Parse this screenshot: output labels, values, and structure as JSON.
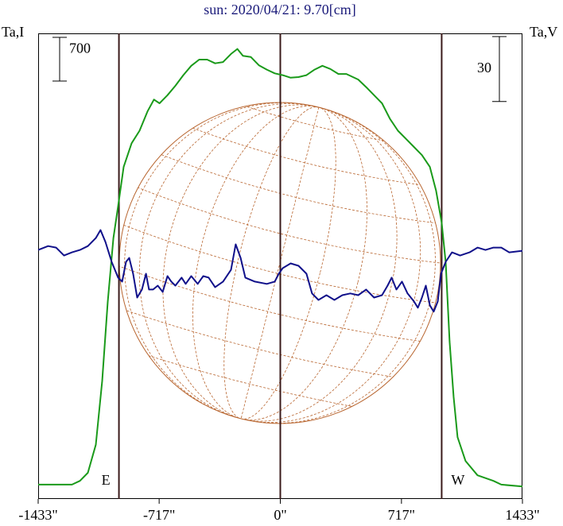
{
  "chart_data": {
    "type": "line",
    "title": "sun: 2020/04/21: 9.70[cm]",
    "y_label": "Ta,I",
    "y2_label": "Ta,V",
    "xlim": [
      -1433,
      1433
    ],
    "xticks": [
      {
        "value": -1433,
        "label": "-1433\""
      },
      {
        "value": -717,
        "label": "-717\""
      },
      {
        "value": 0,
        "label": "0\""
      },
      {
        "value": 717,
        "label": "717\""
      },
      {
        "value": 1433,
        "label": "1433\""
      }
    ],
    "ylim": [
      -230,
      7230
    ],
    "y2lim": [
      -115,
      100
    ],
    "scale_bars": [
      {
        "value": 700
      },
      {
        "value": 30,
        "axis": "y2"
      }
    ],
    "markers": [
      {
        "label": "E",
        "x": -955
      },
      {
        "label": "W",
        "x": 955
      }
    ],
    "series": [
      {
        "name": "I",
        "color": "#1a9a1a",
        "x": [
          -1433,
          -1233,
          -1186,
          -1139,
          -1092,
          -1054,
          -1021,
          -988,
          -960,
          -927,
          -880,
          -833,
          -786,
          -748,
          -715,
          -668,
          -621,
          -574,
          -527,
          -480,
          -433,
          -386,
          -339,
          -292,
          -254,
          -221,
          -174,
          -127,
          -80,
          -33,
          14,
          61,
          108,
          155,
          203,
          249,
          296,
          344,
          391,
          461,
          508,
          555,
          602,
          649,
          696,
          744,
          791,
          838,
          885,
          922,
          955,
          979,
          1002,
          1026,
          1049,
          1096,
          1167,
          1261,
          1308,
          1433
        ],
        "values": [
          0,
          0,
          60,
          190,
          640,
          1660,
          2930,
          3950,
          4460,
          5090,
          5470,
          5670,
          5980,
          6170,
          6110,
          6240,
          6390,
          6560,
          6710,
          6810,
          6810,
          6750,
          6770,
          6900,
          6980,
          6870,
          6850,
          6720,
          6650,
          6590,
          6560,
          6520,
          6530,
          6560,
          6650,
          6710,
          6660,
          6580,
          6580,
          6490,
          6370,
          6240,
          6110,
          5860,
          5670,
          5540,
          5410,
          5280,
          5090,
          4710,
          4200,
          3560,
          2290,
          1400,
          760,
          380,
          150,
          60,
          0,
          -30
        ]
      },
      {
        "name": "V",
        "color": "#10108a",
        "axis": "y2",
        "x": [
          -1433,
          -1374,
          -1327,
          -1280,
          -1233,
          -1186,
          -1139,
          -1092,
          -1064,
          -1035,
          -998,
          -960,
          -936,
          -913,
          -894,
          -871,
          -847,
          -819,
          -795,
          -777,
          -753,
          -725,
          -696,
          -668,
          -645,
          -621,
          -584,
          -560,
          -527,
          -489,
          -456,
          -424,
          -386,
          -339,
          -292,
          -264,
          -235,
          -207,
          -151,
          -80,
          -33,
          -9,
          14,
          61,
          108,
          155,
          188,
          226,
          273,
          320,
          367,
          414,
          461,
          508,
          555,
          602,
          635,
          659,
          687,
          720,
          753,
          791,
          814,
          838,
          861,
          885,
          908,
          932,
          951,
          979,
          1016,
          1064,
          1120,
          1167,
          1214,
          1261,
          1308,
          1355,
          1433
        ],
        "values": [
          0,
          1.8,
          1.1,
          -2.6,
          -1.1,
          0,
          1.8,
          5.5,
          9.2,
          3.7,
          -5.5,
          -12.8,
          -14.6,
          -5.5,
          -3.7,
          -11,
          -22,
          -18.3,
          -11,
          -18.3,
          -18.3,
          -16.5,
          -19.4,
          -12.1,
          -14.6,
          -16.5,
          -12.8,
          -15.7,
          -12.1,
          -15.7,
          -12.1,
          -12.8,
          -17.2,
          -14.6,
          -9.2,
          2.6,
          -3.7,
          -12.8,
          -14.6,
          -15.7,
          -14.6,
          -11,
          -8.4,
          -6.2,
          -7.3,
          -11,
          -20.1,
          -23.1,
          -20.9,
          -23.1,
          -20.9,
          -20.1,
          -20.9,
          -18.3,
          -22,
          -20.9,
          -16.5,
          -12.8,
          -18.3,
          -14.6,
          -20.1,
          -23.8,
          -26.7,
          -22,
          -16.5,
          -25.6,
          -28.5,
          -23.8,
          -11,
          -5.5,
          -1.1,
          -2.6,
          -1.1,
          1.1,
          0,
          1.1,
          1.1,
          -1.1,
          -0.4
        ]
      }
    ]
  }
}
